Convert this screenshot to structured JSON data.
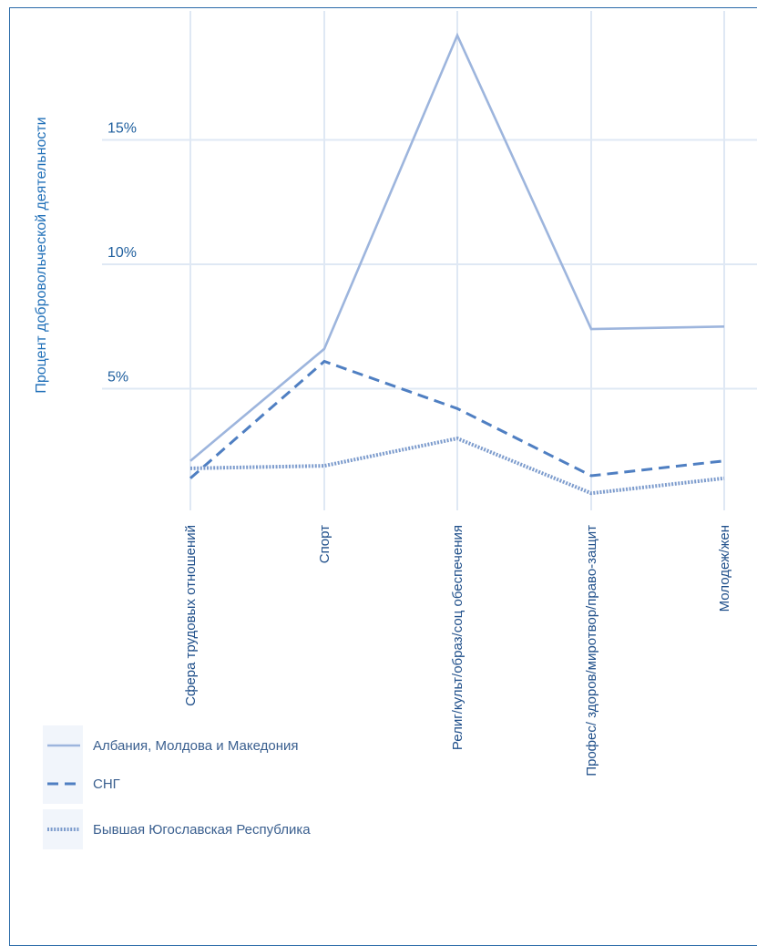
{
  "chart_data": {
    "type": "line",
    "ylabel": "Процент добровольческой деятельности",
    "xlabel": "",
    "categories": [
      "Сфера трудовых отношений",
      "Спорт",
      "Религ/культ/образ/соц обеспечения",
      "Профес/ здоров/миротвор/право-защит",
      "Молодеж/жен"
    ],
    "yticks": [
      {
        "value": 5,
        "label": "5%"
      },
      {
        "value": 10,
        "label": "10%"
      },
      {
        "value": 15,
        "label": "15%"
      }
    ],
    "ylim": [
      0,
      20
    ],
    "grid": true,
    "legend_position": "bottom-left",
    "series": [
      {
        "name": "Албания, Молдова и Македония",
        "style": "solid",
        "color": "#9db5dd",
        "values": [
          2.1,
          6.6,
          19.2,
          7.4,
          7.5
        ]
      },
      {
        "name": "СНГ",
        "style": "dashed",
        "color": "#4f7fc2",
        "values": [
          1.4,
          6.1,
          4.2,
          1.5,
          2.1
        ]
      },
      {
        "name": "Бывшая Югославская Республика",
        "style": "dotted",
        "color": "#7d9ccd",
        "values": [
          1.8,
          1.9,
          3.0,
          0.8,
          1.4
        ]
      }
    ]
  }
}
